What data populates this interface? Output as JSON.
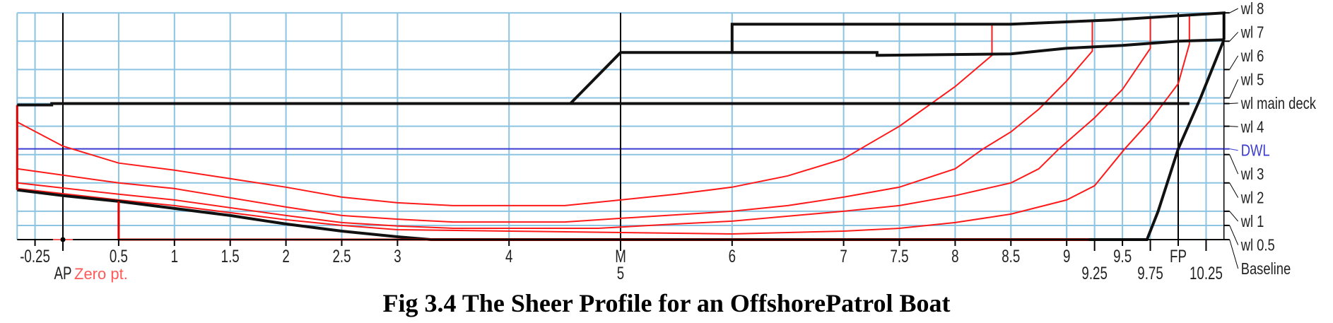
{
  "caption": "Fig 3.4 The Sheer Profile for an OffshorePatrol Boat",
  "colors": {
    "grid": "#8cc4e2",
    "hull": "#111111",
    "buttock": "#ff1a1a",
    "dwl": "#3b3bd0",
    "zero": "#ff5a5a"
  },
  "chart_data": {
    "type": "line",
    "x_range": [
      -0.41,
      10.41
    ],
    "y_range": [
      0,
      8
    ],
    "stations": [
      {
        "value": -0.25,
        "label": "-0.25",
        "line": "grid"
      },
      {
        "value": 0,
        "label": "AP",
        "line": "black"
      },
      {
        "value": 0.5,
        "label": "0.5",
        "line": "grid"
      },
      {
        "value": 1,
        "label": "1",
        "line": "grid"
      },
      {
        "value": 1.5,
        "label": "1.5",
        "line": "grid"
      },
      {
        "value": 2,
        "label": "2",
        "line": "grid"
      },
      {
        "value": 2.5,
        "label": "2.5",
        "line": "grid"
      },
      {
        "value": 3,
        "label": "3",
        "line": "grid"
      },
      {
        "value": 4,
        "label": "4",
        "line": "grid"
      },
      {
        "value": 5,
        "label": "M",
        "line": "black"
      },
      {
        "value": 5,
        "label": "5",
        "line": "black"
      },
      {
        "value": 6,
        "label": "6",
        "line": "grid"
      },
      {
        "value": 7,
        "label": "7",
        "line": "grid"
      },
      {
        "value": 7.5,
        "label": "7.5",
        "line": "grid"
      },
      {
        "value": 8,
        "label": "8",
        "line": "grid"
      },
      {
        "value": 8.5,
        "label": "8.5",
        "line": "grid"
      },
      {
        "value": 9,
        "label": "9",
        "line": "grid"
      },
      {
        "value": 9.25,
        "label": "9.25",
        "line": "grid"
      },
      {
        "value": 9.5,
        "label": "9.5",
        "line": "grid"
      },
      {
        "value": 9.75,
        "label": "9.75",
        "line": "grid"
      },
      {
        "value": 10,
        "label": "FP",
        "line": "black"
      },
      {
        "value": 10.25,
        "label": "10.25",
        "line": "grid"
      }
    ],
    "waterlines": [
      {
        "value": 8,
        "label": "wl 8"
      },
      {
        "value": 7,
        "label": "wl 7"
      },
      {
        "value": 6,
        "label": "wl 6"
      },
      {
        "value": 5,
        "label": "wl 5"
      },
      {
        "value": 4.8,
        "label": "wl main deck"
      },
      {
        "value": 4,
        "label": "wl 4"
      },
      {
        "value": 3.2,
        "label": "DWL",
        "color": "#3b3bd0"
      },
      {
        "value": 3,
        "label": "wl 3"
      },
      {
        "value": 2,
        "label": "wl 2"
      },
      {
        "value": 1,
        "label": "wl 1"
      },
      {
        "value": 0.5,
        "label": "wl 0.5"
      },
      {
        "value": 0,
        "label": "Baseline"
      }
    ],
    "zero_point": {
      "label": "Zero pt.",
      "x": 0,
      "y": 0
    },
    "hull_lines": [
      {
        "name": "keel-stem-profile",
        "points": [
          [
            -0.41,
            1.75
          ],
          [
            0,
            1.55
          ],
          [
            0.5,
            1.35
          ],
          [
            1,
            1.1
          ],
          [
            1.5,
            0.85
          ],
          [
            2,
            0.55
          ],
          [
            2.5,
            0.3
          ],
          [
            3,
            0.1
          ],
          [
            3.3,
            0
          ],
          [
            9.72,
            0
          ],
          [
            9.82,
            1
          ],
          [
            10.0,
            3.2
          ],
          [
            10.2,
            5
          ],
          [
            10.41,
            7.05
          ]
        ]
      },
      {
        "name": "transom",
        "points": [
          [
            -0.41,
            1.75
          ],
          [
            -0.41,
            4.75
          ]
        ]
      },
      {
        "name": "main-deck",
        "points": [
          [
            -0.41,
            4.75
          ],
          [
            -0.1,
            4.75
          ],
          [
            -0.1,
            4.8
          ],
          [
            10.1,
            4.8
          ]
        ]
      },
      {
        "name": "forecastle-ramp",
        "points": [
          [
            4.55,
            4.8
          ],
          [
            5,
            6.6
          ]
        ]
      },
      {
        "name": "forecastle-sheer",
        "points": [
          [
            5,
            6.6
          ],
          [
            7.3,
            6.6
          ],
          [
            7.3,
            6.5
          ],
          [
            8.5,
            6.55
          ],
          [
            9,
            6.75
          ],
          [
            9.5,
            6.85
          ],
          [
            10,
            7.0
          ],
          [
            10.41,
            7.05
          ]
        ]
      },
      {
        "name": "upper-sheer",
        "points": [
          [
            6,
            6.6
          ],
          [
            6,
            7.6
          ],
          [
            8.5,
            7.6
          ],
          [
            9.4,
            7.75
          ],
          [
            10.41,
            8.0
          ],
          [
            10.41,
            7.05
          ]
        ]
      },
      {
        "name": "rudder-baseline",
        "points": [
          [
            0.5,
            1.35
          ],
          [
            0.5,
            0
          ],
          [
            9.2,
            0
          ]
        ]
      }
    ],
    "buttock_lines": [
      {
        "points": [
          [
            -0.41,
            4.15
          ],
          [
            0,
            3.3
          ],
          [
            0.5,
            2.7
          ],
          [
            1,
            2.45
          ],
          [
            1.5,
            2.15
          ],
          [
            2,
            1.85
          ],
          [
            2.5,
            1.5
          ],
          [
            3,
            1.3
          ],
          [
            3.5,
            1.2
          ],
          [
            4.5,
            1.2
          ],
          [
            5,
            1.4
          ],
          [
            5.5,
            1.6
          ],
          [
            6,
            1.85
          ],
          [
            6.5,
            2.25
          ],
          [
            7,
            2.85
          ],
          [
            7.15,
            3.2
          ],
          [
            7.5,
            4.0
          ],
          [
            8,
            5.4
          ],
          [
            8.33,
            6.5
          ],
          [
            8.33,
            7.6
          ]
        ]
      },
      {
        "points": [
          [
            -0.41,
            2.5
          ],
          [
            0.5,
            2.0
          ],
          [
            1,
            1.8
          ],
          [
            2,
            1.15
          ],
          [
            2.5,
            0.85
          ],
          [
            3,
            0.72
          ],
          [
            3.5,
            0.62
          ],
          [
            4.5,
            0.62
          ],
          [
            5,
            0.75
          ],
          [
            6,
            1.0
          ],
          [
            6.5,
            1.2
          ],
          [
            7,
            1.5
          ],
          [
            7.5,
            1.85
          ],
          [
            8,
            2.5
          ],
          [
            8.25,
            3.2
          ],
          [
            8.5,
            3.8
          ],
          [
            8.75,
            4.6
          ],
          [
            9,
            5.6
          ],
          [
            9.23,
            6.65
          ],
          [
            9.23,
            7.7
          ]
        ]
      },
      {
        "points": [
          [
            -0.41,
            2.0
          ],
          [
            0.5,
            1.6
          ],
          [
            1,
            1.4
          ],
          [
            2,
            0.85
          ],
          [
            2.5,
            0.6
          ],
          [
            3,
            0.48
          ],
          [
            3.5,
            0.4
          ],
          [
            4.8,
            0.4
          ],
          [
            5.5,
            0.55
          ],
          [
            6,
            0.65
          ],
          [
            7,
            1.0
          ],
          [
            7.5,
            1.2
          ],
          [
            8,
            1.55
          ],
          [
            8.5,
            2.0
          ],
          [
            8.75,
            2.5
          ],
          [
            8.93,
            3.2
          ],
          [
            9.25,
            4.3
          ],
          [
            9.5,
            5.3
          ],
          [
            9.75,
            6.75
          ],
          [
            9.75,
            7.85
          ]
        ]
      },
      {
        "points": [
          [
            -0.41,
            1.8
          ],
          [
            0.5,
            1.4
          ],
          [
            1,
            1.2
          ],
          [
            2,
            0.7
          ],
          [
            2.5,
            0.5
          ],
          [
            3,
            0.35
          ],
          [
            4,
            0.3
          ],
          [
            6,
            0.2
          ],
          [
            7,
            0.3
          ],
          [
            7.5,
            0.4
          ],
          [
            8,
            0.6
          ],
          [
            8.5,
            0.9
          ],
          [
            9,
            1.4
          ],
          [
            9.25,
            1.9
          ],
          [
            9.52,
            3.2
          ],
          [
            9.75,
            4.2
          ],
          [
            10,
            5.5
          ],
          [
            10.1,
            6.9
          ],
          [
            10.1,
            7.95
          ]
        ]
      }
    ]
  }
}
